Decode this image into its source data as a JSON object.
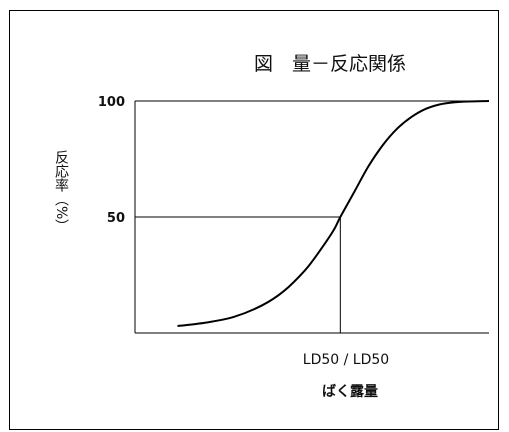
{
  "chart_data": {
    "type": "line",
    "title": "図　量－反応関係",
    "xlabel": "ばく露量",
    "ylabel": "反応率（%）",
    "ylim": [
      0,
      100
    ],
    "x_annotation": "LD50 / LD50",
    "y_ticks": [
      {
        "value": 50,
        "label": "50"
      },
      {
        "value": 100,
        "label": "100"
      }
    ],
    "x_domain": [
      0,
      1
    ],
    "x50": 0.58,
    "series": [
      {
        "x": [
          0.12,
          0.2,
          0.28,
          0.36,
          0.42,
          0.48,
          0.52,
          0.56,
          0.58,
          0.62,
          0.66,
          0.7,
          0.74,
          0.78,
          0.82,
          0.86,
          0.9,
          0.94,
          1.0
        ],
        "values": [
          3,
          4.5,
          7,
          12,
          18,
          27,
          35,
          44,
          50,
          61,
          72,
          81,
          88,
          93,
          96.5,
          98.5,
          99.4,
          99.8,
          100
        ]
      }
    ],
    "reference_lines": {
      "y": 50,
      "x": 0.58
    },
    "grid": false,
    "colors": {
      "frame": "#000000",
      "curve": "#000000",
      "text": "#111111"
    }
  }
}
